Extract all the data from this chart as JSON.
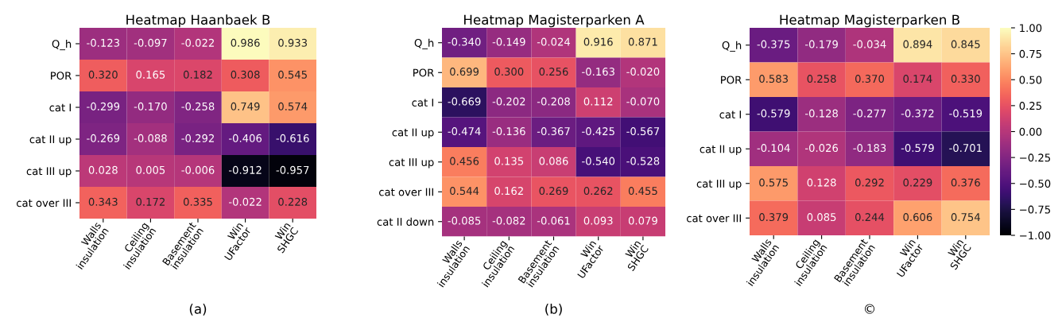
{
  "chart_data": [
    {
      "type": "heatmap",
      "title": "Heatmap Haanbaek B",
      "categories": [
        "Walls\ninsulation",
        "Ceiling\ninsulation",
        "Basement\ninsulation",
        "Win\nUFactor",
        "Win\nSHGC"
      ],
      "y_categories": [
        "Q_h",
        "POR",
        "cat I",
        "cat II up",
        "cat III up",
        "cat over III"
      ],
      "annotations": [
        "(a)"
      ],
      "cells": [
        [
          -0.123,
          -0.097,
          -0.022,
          0.986,
          0.933
        ],
        [
          0.32,
          0.165,
          0.182,
          0.308,
          0.545
        ],
        [
          -0.299,
          -0.17,
          -0.258,
          0.749,
          0.574
        ],
        [
          -0.269,
          -0.088,
          -0.292,
          -0.406,
          -0.616
        ],
        [
          0.028,
          0.005,
          -0.006,
          -0.912,
          -0.957
        ],
        [
          0.343,
          0.172,
          0.335,
          -0.022,
          0.228
        ]
      ],
      "cell_labels": [
        [
          "-0.123",
          "-0.097",
          "-0.022",
          "0.986",
          "0.933"
        ],
        [
          "0.320",
          "0.165",
          "0.182",
          "0.308",
          "0.545"
        ],
        [
          "-0.299",
          "-0.170",
          "-0.258",
          "0.749",
          "0.574"
        ],
        [
          "-0.269",
          "-0.088",
          "-0.292",
          "-0.406",
          "-0.616"
        ],
        [
          "0.028",
          "0.005",
          "-0.006",
          "-0.912",
          "-0.957"
        ],
        [
          "0.343",
          "0.172",
          "0.335",
          "-0.022",
          "0.228"
        ]
      ]
    },
    {
      "type": "heatmap",
      "title": "Heatmap Magisterparken A",
      "categories": [
        "Walls\ninsulation",
        "Ceiling\ninsulation",
        "Basement\ninsulation",
        "Win\nUFactor",
        "Win\nSHGC"
      ],
      "y_categories": [
        "Q_h",
        "POR",
        "cat I",
        "cat II up",
        "cat III up",
        "cat over III",
        "cat II down"
      ],
      "annotations": [
        "(b)"
      ],
      "cells": [
        [
          -0.34,
          -0.149,
          -0.024,
          0.916,
          0.871
        ],
        [
          0.699,
          0.3,
          0.256,
          -0.163,
          -0.02
        ],
        [
          -0.669,
          -0.202,
          -0.208,
          0.112,
          -0.07
        ],
        [
          -0.474,
          -0.136,
          -0.367,
          -0.425,
          -0.567
        ],
        [
          0.456,
          0.135,
          0.086,
          -0.54,
          -0.528
        ],
        [
          0.544,
          0.162,
          0.269,
          0.262,
          0.455
        ],
        [
          -0.085,
          -0.082,
          -0.061,
          0.093,
          0.079
        ]
      ],
      "cell_labels": [
        [
          "-0.340",
          "-0.149",
          "-0.024",
          "0.916",
          "0.871"
        ],
        [
          "0.699",
          "0.300",
          "0.256",
          "-0.163",
          "-0.020"
        ],
        [
          "-0.669",
          "-0.202",
          "-0.208",
          "0.112",
          "-0.070"
        ],
        [
          "-0.474",
          "-0.136",
          "-0.367",
          "-0.425",
          "-0.567"
        ],
        [
          "0.456",
          "0.135",
          "0.086",
          "-0.540",
          "-0.528"
        ],
        [
          "0.544",
          "0.162",
          "0.269",
          "0.262",
          "0.455"
        ],
        [
          "-0.085",
          "-0.082",
          "-0.061",
          "0.093",
          "0.079"
        ]
      ]
    },
    {
      "type": "heatmap",
      "title": "Heatmap Magisterparken B",
      "categories": [
        "Walls\ninsulation",
        "Ceiling\ninsulation",
        "Basement\ninsulation",
        "Win\nUFactor",
        "Win\nSHGC"
      ],
      "y_categories": [
        "Q_h",
        "POR",
        "cat I",
        "cat II up",
        "cat III up",
        "cat over III"
      ],
      "clim": [
        -1,
        1
      ],
      "cticks": [
        {
          "value": 1,
          "label": "1.00"
        },
        {
          "value": 0.75,
          "label": "0.75"
        },
        {
          "value": 0.5,
          "label": "0.50"
        },
        {
          "value": 0.25,
          "label": "0.25"
        },
        {
          "value": 0,
          "label": "0.00"
        },
        {
          "value": -0.25,
          "label": "−0.25"
        },
        {
          "value": -0.5,
          "label": "−0.50"
        },
        {
          "value": -0.75,
          "label": "−0.75"
        },
        {
          "value": -1,
          "label": "−1.00"
        }
      ],
      "annotations": [
        "©"
      ],
      "cells": [
        [
          -0.375,
          -0.179,
          -0.034,
          0.894,
          0.845
        ],
        [
          0.583,
          0.258,
          0.37,
          0.174,
          0.33
        ],
        [
          -0.579,
          -0.128,
          -0.277,
          -0.372,
          -0.519
        ],
        [
          -0.104,
          -0.026,
          -0.183,
          -0.579,
          -0.701
        ],
        [
          0.575,
          0.128,
          0.292,
          0.229,
          0.376
        ],
        [
          0.379,
          0.085,
          0.244,
          0.606,
          0.754
        ]
      ],
      "cell_labels": [
        [
          "-0.375",
          "-0.179",
          "-0.034",
          "0.894",
          "0.845"
        ],
        [
          "0.583",
          "0.258",
          "0.370",
          "0.174",
          "0.330"
        ],
        [
          "-0.579",
          "-0.128",
          "-0.277",
          "-0.372",
          "-0.519"
        ],
        [
          "-0.104",
          "-0.026",
          "-0.183",
          "-0.579",
          "-0.701"
        ],
        [
          "0.575",
          "0.128",
          "0.292",
          "0.229",
          "0.376"
        ],
        [
          "0.379",
          "0.085",
          "0.244",
          "0.606",
          "0.754"
        ]
      ]
    }
  ]
}
